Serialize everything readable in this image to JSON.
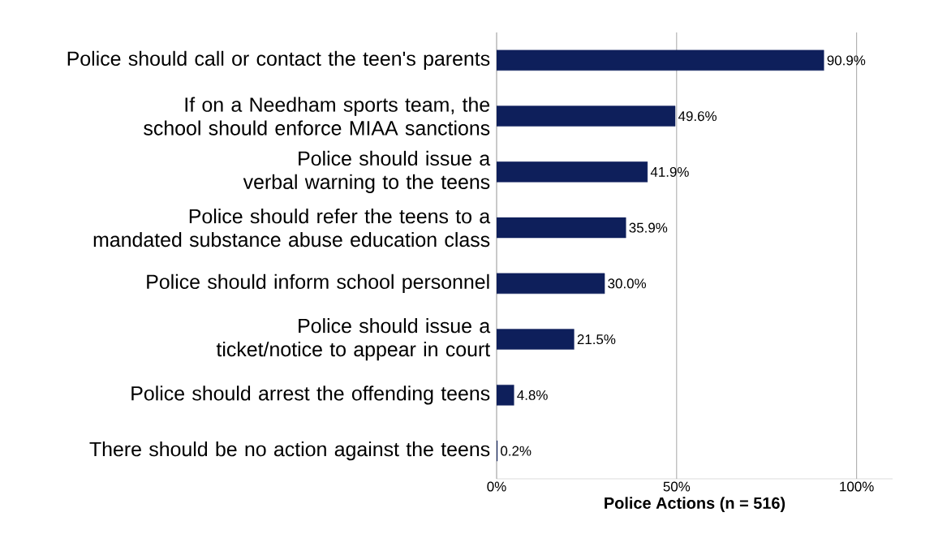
{
  "chart_data": {
    "type": "bar",
    "orientation": "horizontal",
    "xlabel": "Police Actions (n = 516)",
    "categories": [
      "Police should call or contact the teen's parents",
      "If on a Needham sports team, the school should enforce MIAA sanctions",
      "Police should issue a verbal warning to the teens",
      "Police should refer the teens to a mandated substance abuse education class",
      "Police should inform school personnel",
      "Police should issue a ticket/notice to appear in court",
      "Police should arrest the offending teens",
      "There should be no action against the teens"
    ],
    "values": [
      90.9,
      49.6,
      41.9,
      35.9,
      30.0,
      21.5,
      4.8,
      0.2
    ],
    "value_labels": [
      "90.9%",
      "49.6%",
      "41.9%",
      "35.9%",
      "30.0%",
      "21.5%",
      "4.8%",
      "0.2%"
    ],
    "color": "#0e1f5b",
    "xlim": [
      0,
      110
    ],
    "xticks": [
      {
        "value": 0,
        "label": "0%"
      },
      {
        "value": 50,
        "label": "50%"
      },
      {
        "value": 100,
        "label": "100%"
      }
    ],
    "grid": "x"
  }
}
